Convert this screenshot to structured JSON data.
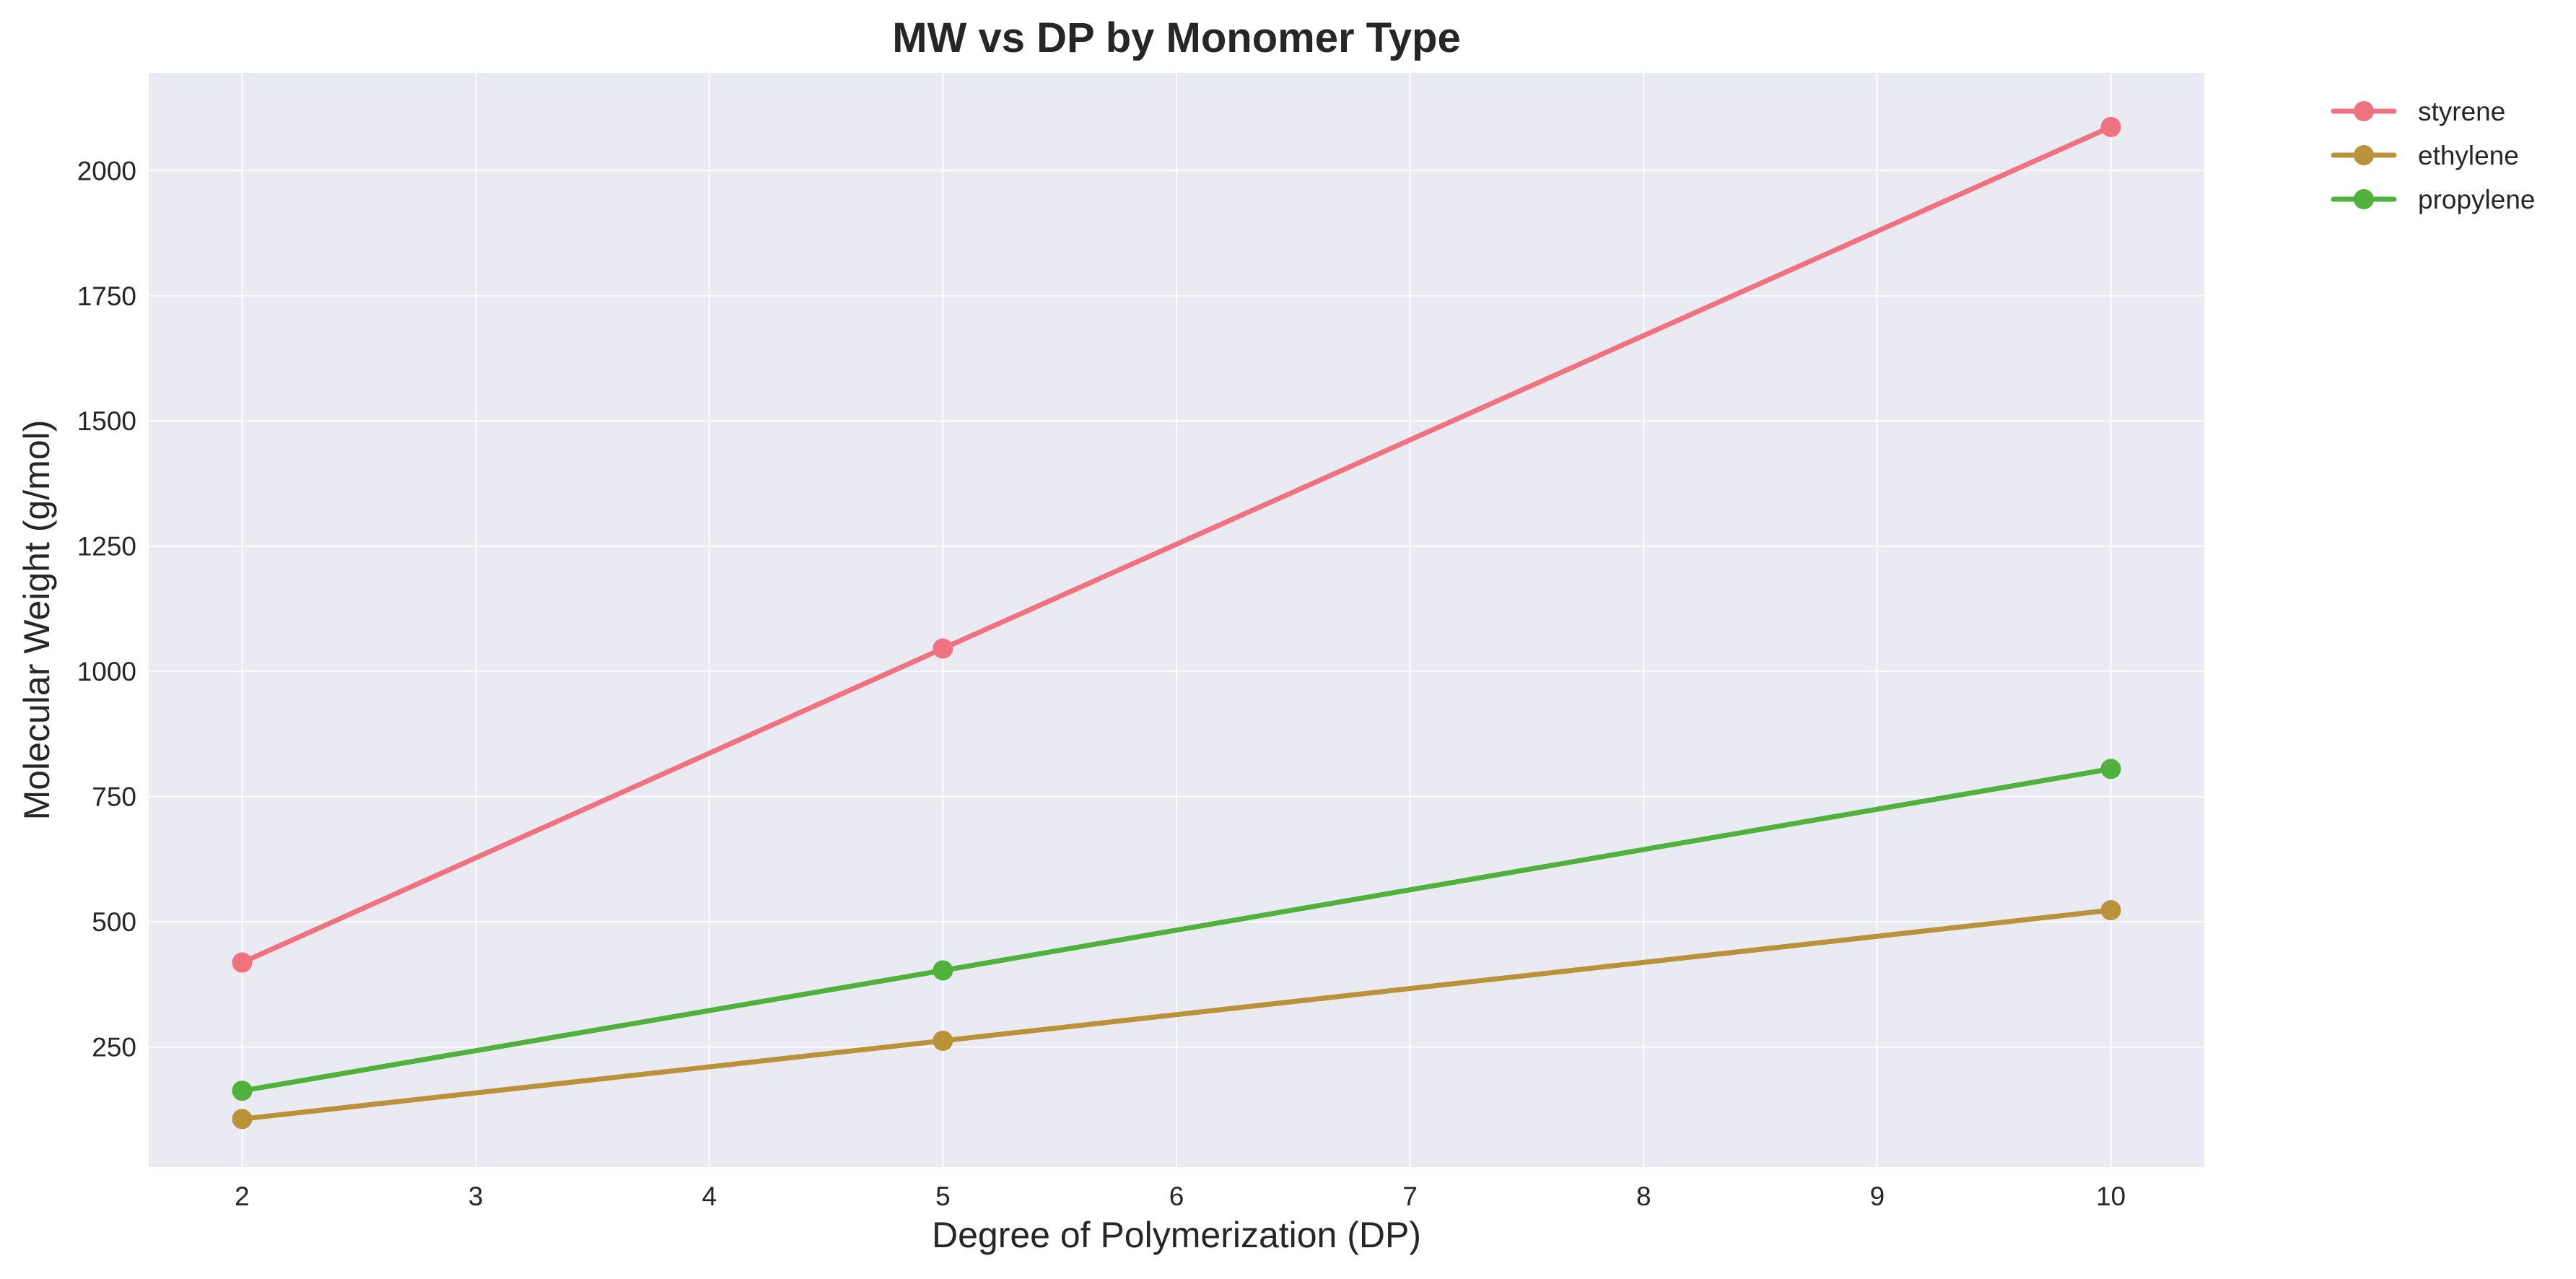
{
  "chart_data": {
    "type": "line",
    "title": "MW vs DP by Monomer Type",
    "xlabel": "Degree of Polymerization (DP)",
    "ylabel": "Molecular Weight (g/mol)",
    "x": [
      2,
      5,
      10
    ],
    "xlim": [
      1.6,
      10.4
    ],
    "ylim": [
      10,
      2195
    ],
    "xticks": [
      2,
      3,
      4,
      5,
      6,
      7,
      8,
      9,
      10
    ],
    "yticks": [
      250,
      500,
      750,
      1000,
      1250,
      1500,
      1750,
      2000
    ],
    "grid": true,
    "legend_position": "outside top-right",
    "series": [
      {
        "name": "styrene",
        "values": [
          418.6,
          1045.5,
          2087.0
        ],
        "color": "#f0717f"
      },
      {
        "name": "ethylene",
        "values": [
          106.2,
          262.3,
          523.1
        ],
        "color": "#b9923a"
      },
      {
        "name": "propylene",
        "values": [
          162.5,
          402.8,
          805.2
        ],
        "color": "#50b13c"
      }
    ]
  },
  "colors": {
    "plot_background": "#eaeaf2",
    "grid": "#ffffff",
    "text": "#262626"
  }
}
